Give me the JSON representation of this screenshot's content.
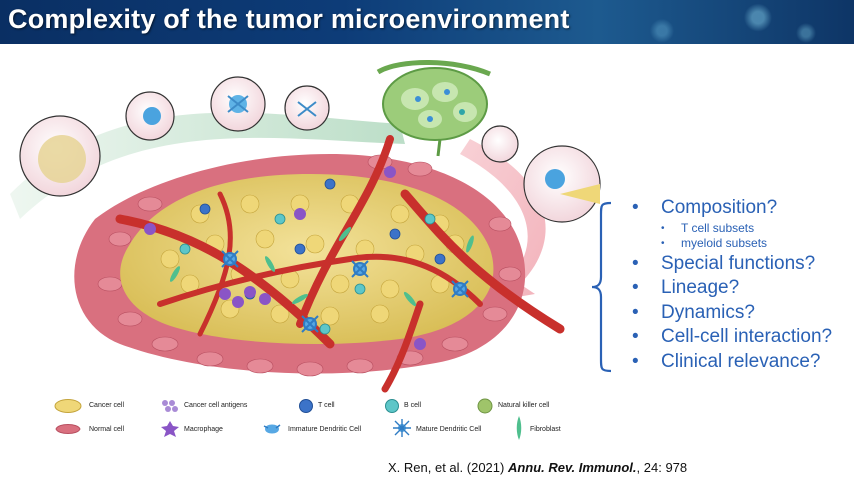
{
  "slide": {
    "title": "Complexity of the tumor microenvironment"
  },
  "questions": [
    {
      "label": "Composition?"
    },
    {
      "label": "Special functions?"
    },
    {
      "label": "Lineage?"
    },
    {
      "label": "Dynamics?"
    },
    {
      "label": "Cell-cell interaction?"
    },
    {
      "label": "Clinical relevance?"
    }
  ],
  "sub_items": [
    "T cell subsets",
    "myeloid subsets"
  ],
  "bullet_glyph": "•",
  "legend": [
    {
      "label": "Cancer cell",
      "icon": "cancer-cell-icon"
    },
    {
      "label": "Cancer cell antigens",
      "icon": "antigen-icon"
    },
    {
      "label": "T cell",
      "icon": "t-cell-icon"
    },
    {
      "label": "B cell",
      "icon": "b-cell-icon"
    },
    {
      "label": "Natural killer cell",
      "icon": "nk-cell-icon"
    },
    {
      "label": "Normal cell",
      "icon": "normal-cell-icon"
    },
    {
      "label": "Macrophage",
      "icon": "macrophage-icon"
    },
    {
      "label": "Immature Dendritic Cell",
      "icon": "immature-dc-icon"
    },
    {
      "label": "Mature Dendritic Cell",
      "icon": "mature-dc-icon"
    },
    {
      "label": "Fibroblast",
      "icon": "fibroblast-icon"
    }
  ],
  "citation": {
    "authors": "X. Ren, et al. (2021) ",
    "journal": "Annu. Rev. Immunol.",
    "details": ", 24: 978"
  },
  "colors": {
    "banner": "#0d3c78",
    "question_text": "#2a61b5",
    "tumor_cell": "#e8d27a",
    "normal_cell": "#d9707f",
    "vessel": "#c8302c",
    "lymph_node": "#9ccc7a"
  }
}
